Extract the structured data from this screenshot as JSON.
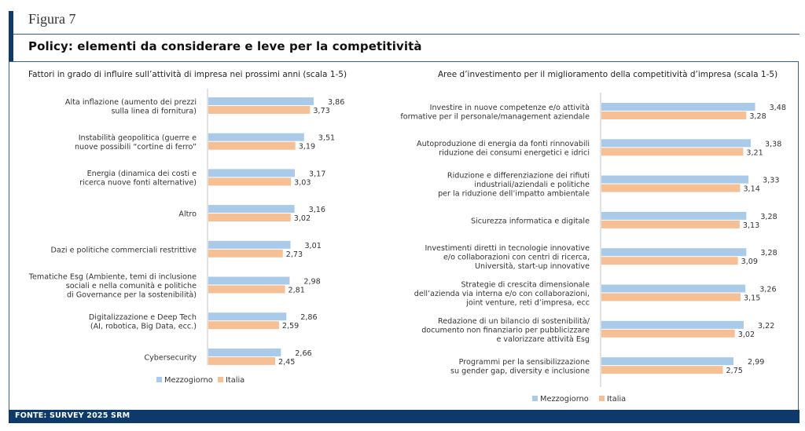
{
  "figure_label": "Figura 7",
  "title": "Policy: elementi da considerare e leve per la competitività",
  "footer": "FONTE: SURVEY 2025 SRM",
  "colors": {
    "mezzogiorno": "#a9cbe9",
    "italia": "#f7bf94",
    "navy": "#0d3a6b"
  },
  "chart_data": [
    {
      "type": "bar",
      "orientation": "horizontal",
      "title": "Fattori in grado di influire sull’attività di impresa nei prossimi anni (scala 1-5)",
      "categories": [
        [
          "Alta inflazione (aumento dei prezzi",
          "sulla linea di fornitura)"
        ],
        [
          "Instabilità geopolitica (guerre e",
          "nuove possibili “cortine di ferro”"
        ],
        [
          "Energia (dinamica dei costi e",
          "ricerca nuove fonti alternative)"
        ],
        [
          "Altro"
        ],
        [
          "Dazi e politiche commerciali restrittive"
        ],
        [
          "Tematiche Esg (Ambiente, temi di inclusione",
          "sociali e nella comunità e politiche",
          "di Governance per la sostenibilità)"
        ],
        [
          "Digitalizzazione e Deep Tech",
          "(AI, robotica, Big Data, ecc.)"
        ],
        [
          "Cybersecurity"
        ]
      ],
      "series": [
        {
          "name": "Mezzogiorno",
          "values": [
            3.86,
            3.51,
            3.17,
            3.16,
            3.01,
            2.98,
            2.86,
            2.66
          ],
          "labels": [
            "3,86",
            "3,51",
            "3,17",
            "3,16",
            "3,01",
            "2,98",
            "2,86",
            "2,66"
          ]
        },
        {
          "name": "Italia",
          "values": [
            3.73,
            3.19,
            3.03,
            3.02,
            2.73,
            2.81,
            2.59,
            2.45
          ],
          "labels": [
            "3,73",
            "3,19",
            "3,03",
            "3,02",
            "2,73",
            "2,81",
            "2,59",
            "2,45"
          ]
        }
      ],
      "xlim": [
        0,
        5
      ],
      "grid": false,
      "legend": "bottom-center"
    },
    {
      "type": "bar",
      "orientation": "horizontal",
      "title": "Aree d’investimento per il miglioramento della competitività d’impresa (scala 1-5)",
      "categories": [
        [
          "Investire in nuove competenze e/o attività",
          "formative per il personale/management aziendale"
        ],
        [
          "Autoproduzione di energia da fonti rinnovabili",
          "riduzione dei consumi energetici e idrici"
        ],
        [
          "Riduzione e differenziazione dei rifiuti",
          "industriali/aziendali e politiche",
          "per la riduzione dell’impatto ambientale"
        ],
        [
          "Sicurezza informatica e digitale"
        ],
        [
          "Investimenti diretti in tecnologie innovative",
          "e/o collaborazioni con centri di ricerca,",
          "Università, start-up innovative"
        ],
        [
          "Strategie di crescita dimensionale",
          "dell’azienda via interna e/o con collaborazioni,",
          "joint venture, reti d’impresa, ecc"
        ],
        [
          "Redazione di un bilancio di sostenibilità/",
          "documento non finanziario per pubblicizzare",
          "e valorizzare attività Esg"
        ],
        [
          "Programmi per la sensibilizzazione",
          "su gender gap, diversity e inclusione"
        ]
      ],
      "series": [
        {
          "name": "Mezzogiorno",
          "values": [
            3.48,
            3.38,
            3.33,
            3.28,
            3.28,
            3.26,
            3.22,
            2.99
          ],
          "labels": [
            "3,48",
            "3,38",
            "3,33",
            "3,28",
            "3,28",
            "3,26",
            "3,22",
            "2,99"
          ]
        },
        {
          "name": "Italia",
          "values": [
            3.28,
            3.21,
            3.14,
            3.13,
            3.09,
            3.15,
            3.02,
            2.75
          ],
          "labels": [
            "3,28",
            "3,21",
            "3,14",
            "3,13",
            "3,09",
            "3,15",
            "3,02",
            "2,75"
          ]
        }
      ],
      "xlim": [
        0,
        5
      ],
      "grid": false,
      "legend": "bottom-center"
    }
  ]
}
